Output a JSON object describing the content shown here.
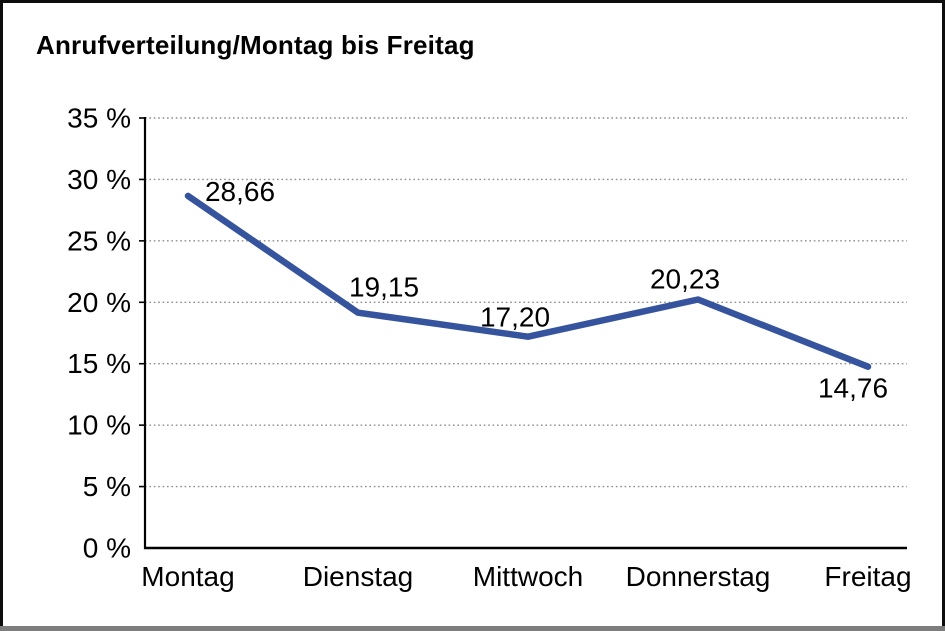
{
  "title": "Anrufverteilung/Montag bis Freitag",
  "chart_data": {
    "type": "line",
    "title": "Anrufverteilung/Montag bis Freitag",
    "categories": [
      "Montag",
      "Dienstag",
      "Mittwoch",
      "Donnerstag",
      "Freitag"
    ],
    "series": [
      {
        "name": "Anrufverteilung",
        "values": [
          28.66,
          19.15,
          17.2,
          20.23,
          14.76
        ]
      }
    ],
    "point_labels": [
      "28,66",
      "19,15",
      "17,20",
      "20,23",
      "14,76"
    ],
    "y_ticks": [
      {
        "value": 0,
        "label": "0 %"
      },
      {
        "value": 5,
        "label": "5 %"
      },
      {
        "value": 10,
        "label": "10 %"
      },
      {
        "value": 15,
        "label": "15 %"
      },
      {
        "value": 20,
        "label": "20 %"
      },
      {
        "value": 25,
        "label": "25 %"
      },
      {
        "value": 30,
        "label": "30 %"
      },
      {
        "value": 35,
        "label": "35 %"
      }
    ],
    "ylim": [
      0,
      35
    ],
    "xlabel": "",
    "ylabel": "",
    "legend": "none",
    "grid": "horizontal-dotted",
    "colors": {
      "line": "#35549d",
      "axis": "#000000",
      "gridline": "#8c8c8c",
      "text": "#000000",
      "background": "#ffffff",
      "frame_border": "#0d0d0d",
      "bottom_bar": "#7d7d7d"
    }
  }
}
